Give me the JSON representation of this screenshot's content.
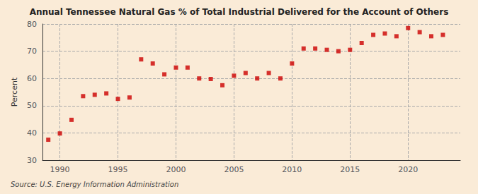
{
  "chart_data": {
    "type": "scatter",
    "title": "Annual Tennessee Natural Gas % of Total Industrial Delivered for the Account of Others",
    "ylabel": "Percent",
    "annotation": "Source: U.S. Energy Information Administration",
    "color": "#cc0000",
    "marker": "square",
    "x": [
      1989,
      1990,
      1991,
      1992,
      1993,
      1994,
      1995,
      1996,
      1997,
      1998,
      1999,
      2000,
      2001,
      2002,
      2003,
      2004,
      2005,
      2006,
      2007,
      2008,
      2009,
      2010,
      2011,
      2012,
      2013,
      2014,
      2015,
      2016,
      2017,
      2018,
      2019,
      2020,
      2021,
      2022,
      2023
    ],
    "values": [
      37.5,
      39.8,
      44.8,
      53.5,
      54.0,
      54.5,
      52.5,
      53.0,
      67.0,
      65.5,
      61.5,
      64.0,
      64.0,
      60.0,
      59.8,
      57.5,
      61.0,
      62.0,
      60.0,
      62.0,
      60.0,
      65.5,
      71.0,
      71.0,
      70.5,
      70.0,
      70.5,
      73.0,
      76.0,
      76.5,
      75.5,
      78.5,
      77.0,
      75.5,
      76.0
    ],
    "xlim": [
      1988.5,
      2024.5
    ],
    "ylim": [
      30,
      80
    ],
    "xticks": [
      1990,
      1995,
      2000,
      2005,
      2010,
      2015,
      2020
    ],
    "yticks": [
      30,
      40,
      50,
      60,
      70,
      80
    ],
    "grid": true
  }
}
